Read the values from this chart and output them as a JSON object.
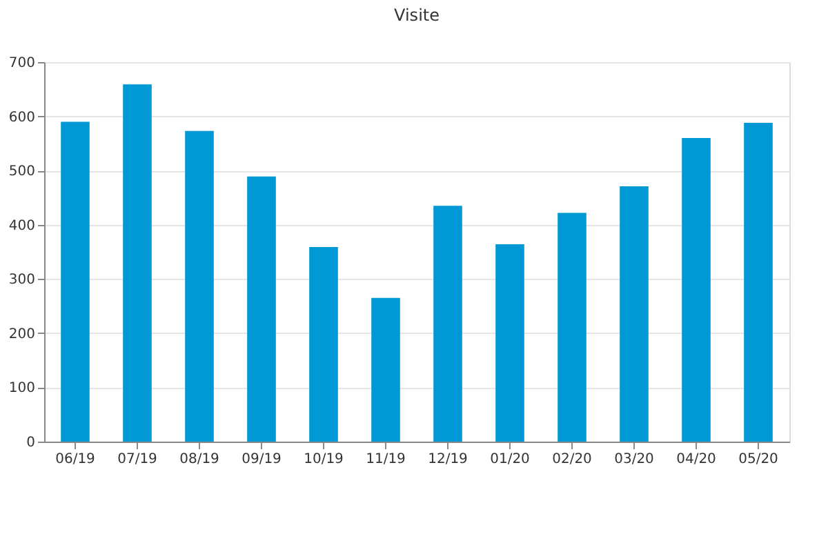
{
  "chart_data": {
    "type": "bar",
    "title": "Visite",
    "categories": [
      "06/19",
      "07/19",
      "08/19",
      "09/19",
      "10/19",
      "11/19",
      "12/19",
      "01/20",
      "02/20",
      "03/20",
      "04/20",
      "05/20"
    ],
    "values": [
      590,
      659,
      573,
      489,
      359,
      265,
      435,
      364,
      422,
      471,
      560,
      588
    ],
    "color": "#0099d6",
    "ylim": [
      0,
      700
    ],
    "yticks": [
      0,
      100,
      200,
      300,
      400,
      500,
      600,
      700
    ],
    "grid": "y"
  }
}
